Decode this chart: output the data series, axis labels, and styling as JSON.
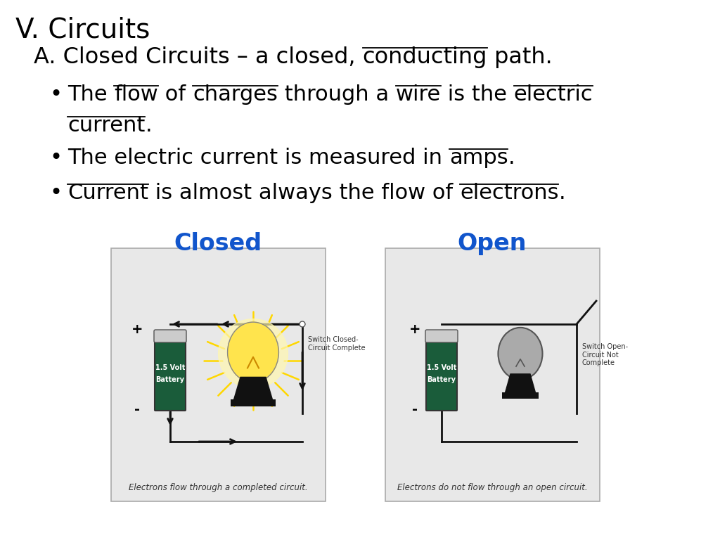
{
  "title": "V. Circuits",
  "background_color": "#ffffff",
  "title_fontsize": 28,
  "subtitle_fontsize": 23,
  "bullet_fontsize": 22,
  "label_fontsize": 24,
  "closed_label": "Closed",
  "open_label": "Open",
  "closed_caption": "Electrons flow through a completed circuit.",
  "open_caption": "Electrons do not flow through an open circuit.",
  "closed_switch_text": "Switch Closed-\nCircuit Complete",
  "open_switch_text": "Switch Open-\nCircuit Not\nComplete"
}
